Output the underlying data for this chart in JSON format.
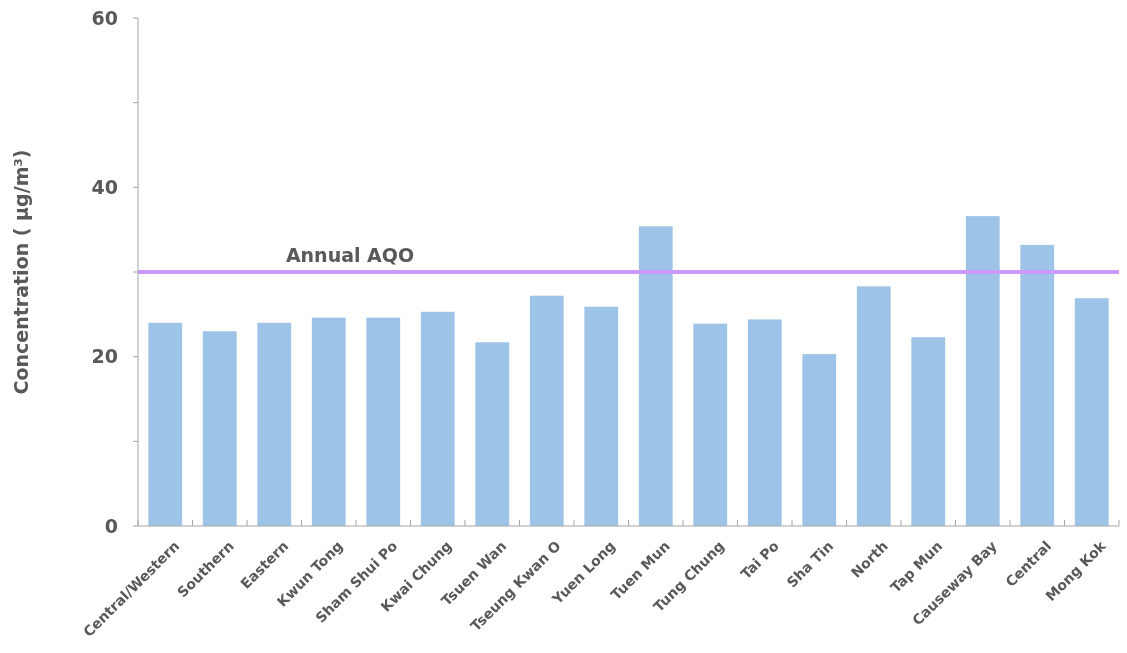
{
  "chart_data": {
    "type": "bar",
    "ylabel": "Concentration ( μg/m³)",
    "categories": [
      "Central/Western",
      "Southern",
      "Eastern",
      "Kwun Tong",
      "Sham Shui Po",
      "Kwai Chung",
      "Tsuen Wan",
      "Tseung Kwan O",
      "Yuen Long",
      "Tuen Mun",
      "Tung Chung",
      "Tai Po",
      "Sha Tin",
      "North",
      "Tap Mun",
      "Causeway Bay",
      "Central",
      "Mong Kok"
    ],
    "values": [
      24.0,
      23.0,
      24.0,
      24.6,
      24.6,
      25.3,
      21.7,
      27.2,
      25.9,
      35.4,
      23.9,
      24.4,
      20.3,
      28.3,
      22.3,
      36.6,
      33.2,
      26.9
    ],
    "color": "#9dc3e6",
    "ylim": [
      0,
      60
    ],
    "yticks": [
      0,
      {
        "value": 10,
        "label": null
      },
      20,
      {
        "value": 30,
        "label": null
      },
      40,
      {
        "value": 50,
        "label": null
      },
      60
    ],
    "grid": false,
    "ref_lines": [
      {
        "axis": "y",
        "value": 30,
        "label": "Annual AQO",
        "color": "#cc99ff"
      }
    ]
  }
}
